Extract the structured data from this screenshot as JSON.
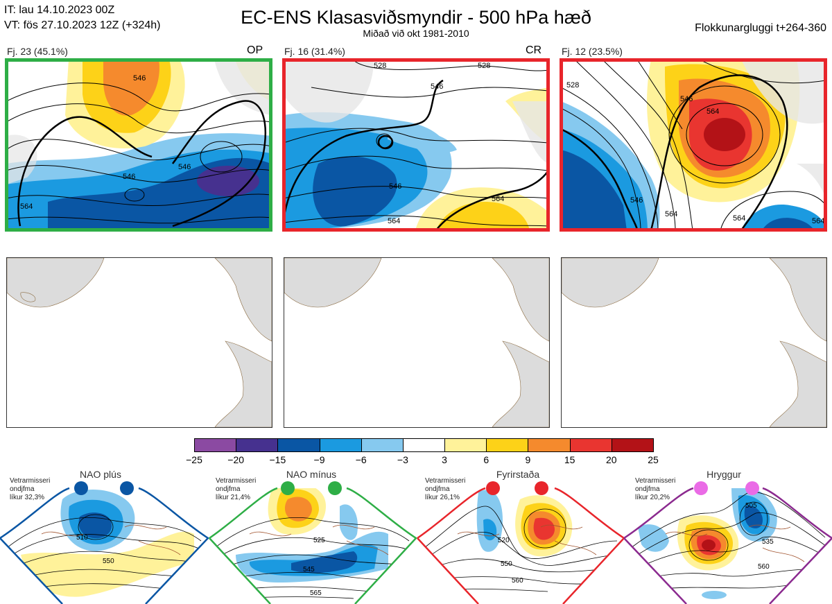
{
  "header": {
    "it": "IT: lau 14.10.2023 00Z",
    "vt": "VT: fös 27.10.2023 12Z  (+324h)",
    "title": "EC-ENS Klasasviðsmyndir - 500 hPa hæð",
    "subtitle": "Miðað við okt 1981-2010",
    "window": "Flokkunargluggi t+264-360"
  },
  "clusters": [
    {
      "label": "Fj. 23 (45.1%)",
      "tag": "OP",
      "frame_color": "#2eae46",
      "contours": [
        "546",
        "546",
        "546",
        "564"
      ]
    },
    {
      "label": "Fj. 16 (31.4%)",
      "tag": "CR",
      "frame_color": "#e8252b",
      "contours": [
        "528",
        "546",
        "528",
        "546",
        "564",
        "564"
      ]
    },
    {
      "label": "Fj. 12 (23.5%)",
      "tag": "",
      "frame_color": "#e8252b",
      "contours": [
        "528",
        "546",
        "564",
        "546",
        "564",
        "564",
        "564"
      ]
    }
  ],
  "colorbar": {
    "ticks": [
      "−25",
      "−20",
      "−15",
      "−9",
      "−6",
      "−3",
      "3",
      "6",
      "9",
      "15",
      "20",
      "25"
    ],
    "colors": [
      "#8b4aa2",
      "#46318f",
      "#0a56a4",
      "#1b9ae0",
      "#86c9ef",
      "#ffffff",
      "#fff29a",
      "#fdd218",
      "#f58a2d",
      "#e93530",
      "#b31217"
    ]
  },
  "regimes": [
    {
      "name": "NAO plús",
      "note": "Vetrarmisseri\nondjfma\nlíkur 32,3%",
      "dot_color": "#0a56a4",
      "frame_color": "#0a56a4",
      "contours": [
        "510",
        "550"
      ]
    },
    {
      "name": "NAO mínus",
      "note": "Vetrarmisseri\nondjfma\nlíkur 21,4%",
      "dot_color": "#2eae46",
      "frame_color": "#2eae46",
      "contours": [
        "525",
        "545",
        "565"
      ]
    },
    {
      "name": "Fyrirstaða",
      "note": "Vetrarmisseri\nondjfma\nlíkur 26,1%",
      "dot_color": "#e8252b",
      "frame_color": "#e8252b",
      "contours": [
        "520",
        "550",
        "560"
      ]
    },
    {
      "name": "Hryggur",
      "note": "Vetrarmisseri\nondjfma\nlíkur 20,2%",
      "dot_color": "#ea6be6",
      "frame_color": "#8b2a8f",
      "contours": [
        "505",
        "535",
        "560"
      ]
    }
  ]
}
